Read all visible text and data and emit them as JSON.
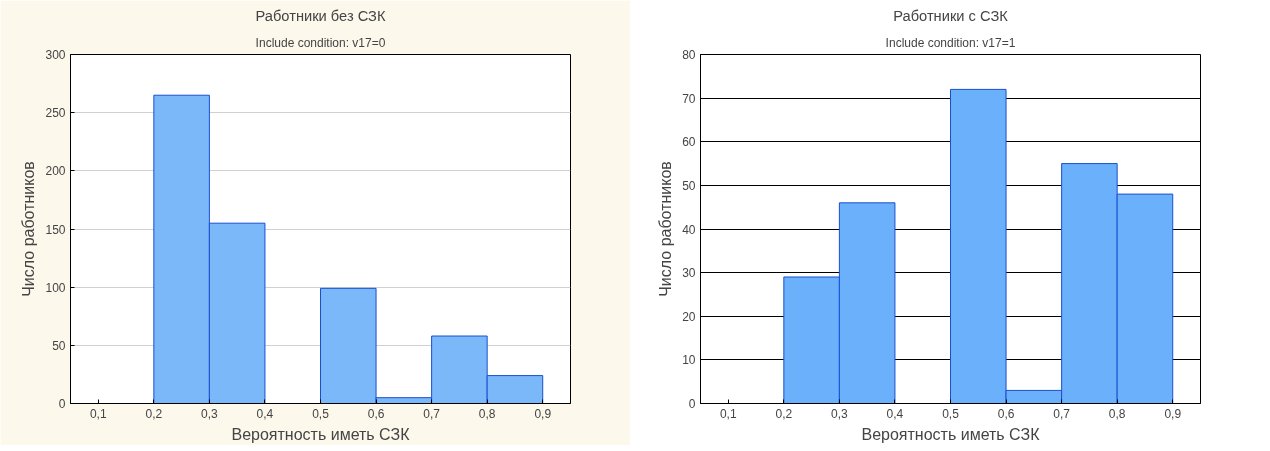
{
  "chart_data": [
    {
      "type": "histogram",
      "title": "Работники без СЗК",
      "subtitle": "Include condition: v17=0",
      "xlabel": "Вероятность иметь СЗК",
      "ylabel": "Число работников",
      "bins": [
        0.1,
        0.2,
        0.3,
        0.4,
        0.5,
        0.6,
        0.7,
        0.8,
        0.9
      ],
      "values": [
        0,
        265,
        155,
        0,
        99,
        5,
        58,
        24
      ],
      "color": "#7ab8fa",
      "xlim": [
        0.05,
        0.95
      ],
      "xticks": [
        {
          "value": 0.1,
          "label": "0,1"
        },
        {
          "value": 0.2,
          "label": "0,2"
        },
        {
          "value": 0.3,
          "label": "0,3"
        },
        {
          "value": 0.4,
          "label": "0,4"
        },
        {
          "value": 0.5,
          "label": "0,5"
        },
        {
          "value": 0.6,
          "label": "0,6"
        },
        {
          "value": 0.7,
          "label": "0,7"
        },
        {
          "value": 0.8,
          "label": "0,8"
        },
        {
          "value": 0.9,
          "label": "0,9"
        }
      ],
      "ylim": [
        0,
        300
      ],
      "yticks": [
        0,
        50,
        100,
        150,
        200,
        250,
        300
      ],
      "grid": "y"
    },
    {
      "type": "histogram",
      "title": "Работники с СЗК",
      "subtitle": "Include condition: v17=1",
      "xlabel": "Вероятность иметь СЗК",
      "ylabel": "Число работников",
      "bins": [
        0.1,
        0.2,
        0.3,
        0.4,
        0.5,
        0.6,
        0.7,
        0.8,
        0.9
      ],
      "values": [
        0,
        29,
        46,
        0,
        72,
        3,
        55,
        48
      ],
      "color": "#6ab0fa",
      "xlim": [
        0.05,
        0.95
      ],
      "xticks": [
        {
          "value": 0.1,
          "label": "0,1"
        },
        {
          "value": 0.2,
          "label": "0,2"
        },
        {
          "value": 0.3,
          "label": "0,3"
        },
        {
          "value": 0.4,
          "label": "0,4"
        },
        {
          "value": 0.5,
          "label": "0,5"
        },
        {
          "value": 0.6,
          "label": "0,6"
        },
        {
          "value": 0.7,
          "label": "0,7"
        },
        {
          "value": 0.8,
          "label": "0,8"
        },
        {
          "value": 0.9,
          "label": "0,9"
        }
      ],
      "ylim": [
        0,
        80
      ],
      "yticks": [
        0,
        10,
        20,
        30,
        40,
        50,
        60,
        70,
        80
      ],
      "grid": "y"
    }
  ]
}
